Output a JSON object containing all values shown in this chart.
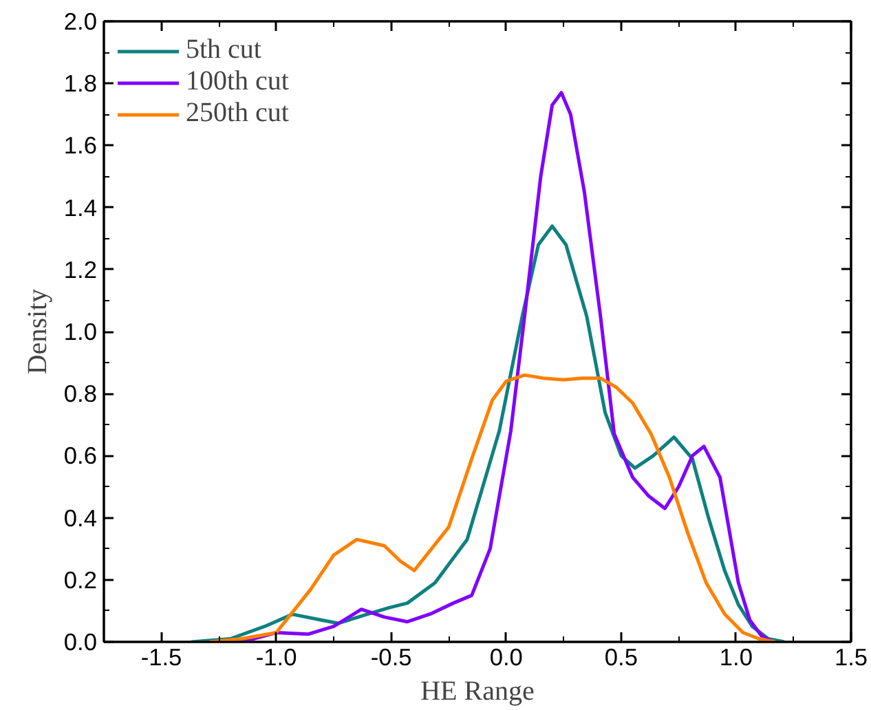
{
  "chart_data": {
    "type": "line",
    "xlabel": "HE Range",
    "ylabel": "Density",
    "xlim": [
      -1.75,
      1.5
    ],
    "ylim": [
      0,
      2.0
    ],
    "xticks": [
      {
        "value": -1.5,
        "label": "-1.5"
      },
      {
        "value": -1.0,
        "label": "-1.0"
      },
      {
        "value": -0.5,
        "label": "-0.5"
      },
      {
        "value": 0,
        "label": "0.0"
      },
      {
        "value": 0.5,
        "label": "0.5"
      },
      {
        "value": 1.0,
        "label": "1.0"
      },
      {
        "value": 1.5,
        "label": "1.5"
      }
    ],
    "yticks": [
      {
        "value": 0,
        "label": "0.0"
      },
      {
        "value": 0.2,
        "label": "0.2"
      },
      {
        "value": 0.4,
        "label": "0.4"
      },
      {
        "value": 0.6,
        "label": "0.6"
      },
      {
        "value": 0.8,
        "label": "0.8"
      },
      {
        "value": 1.0,
        "label": "1.0"
      },
      {
        "value": 1.2,
        "label": "1.2"
      },
      {
        "value": 1.4,
        "label": "1.4"
      },
      {
        "value": 1.6,
        "label": "1.6"
      },
      {
        "value": 1.8,
        "label": "1.8"
      },
      {
        "value": 2.0,
        "label": "2.0"
      }
    ],
    "grid": false,
    "legend": "top left",
    "line_style": "solid",
    "marker": "none",
    "series": [
      {
        "name": "5th cut",
        "color": "#0f8080",
        "x": [
          -1.37,
          -1.2,
          -1.05,
          -0.93,
          -0.8,
          -0.73,
          -0.6,
          -0.51,
          -0.43,
          -0.31,
          -0.17,
          -0.03,
          0.07,
          0.14,
          0.2,
          0.26,
          0.35,
          0.43,
          0.5,
          0.56,
          0.64,
          0.73,
          0.81,
          0.88,
          0.95,
          1.01,
          1.07,
          1.14,
          1.21
        ],
        "values": [
          0,
          0.01,
          0.05,
          0.089,
          0.07,
          0.06,
          0.09,
          0.11,
          0.125,
          0.19,
          0.33,
          0.68,
          1.05,
          1.28,
          1.34,
          1.28,
          1.05,
          0.74,
          0.6,
          0.56,
          0.6,
          0.66,
          0.59,
          0.4,
          0.23,
          0.12,
          0.05,
          0.01,
          0
        ]
      },
      {
        "name": "100th cut",
        "color": "#8000ff",
        "x": [
          -1.2,
          -1.1,
          -1.0,
          -0.86,
          -0.75,
          -0.63,
          -0.53,
          -0.43,
          -0.33,
          -0.23,
          -0.15,
          -0.07,
          0.02,
          0.08,
          0.15,
          0.2,
          0.24,
          0.28,
          0.34,
          0.41,
          0.47,
          0.55,
          0.62,
          0.69,
          0.75,
          0.81,
          0.86,
          0.93,
          1.01,
          1.06,
          1.11,
          1.16
        ],
        "values": [
          0,
          0.01,
          0.03,
          0.025,
          0.05,
          0.105,
          0.08,
          0.065,
          0.09,
          0.125,
          0.15,
          0.3,
          0.68,
          1.05,
          1.5,
          1.73,
          1.77,
          1.7,
          1.45,
          1.05,
          0.67,
          0.53,
          0.47,
          0.43,
          0.5,
          0.6,
          0.63,
          0.53,
          0.19,
          0.07,
          0.02,
          0
        ]
      },
      {
        "name": "250th cut",
        "color": "#ff8000",
        "x": [
          -1.29,
          -1.15,
          -1.0,
          -0.85,
          -0.75,
          -0.65,
          -0.53,
          -0.46,
          -0.4,
          -0.25,
          -0.15,
          -0.06,
          0,
          0.08,
          0.16,
          0.25,
          0.33,
          0.41,
          0.48,
          0.55,
          0.63,
          0.71,
          0.79,
          0.87,
          0.95,
          1.03,
          1.1,
          1.17
        ],
        "values": [
          0,
          0.01,
          0.03,
          0.17,
          0.28,
          0.33,
          0.31,
          0.26,
          0.23,
          0.37,
          0.59,
          0.78,
          0.84,
          0.86,
          0.85,
          0.845,
          0.85,
          0.85,
          0.82,
          0.77,
          0.67,
          0.53,
          0.35,
          0.19,
          0.09,
          0.03,
          0.01,
          0
        ]
      }
    ]
  }
}
